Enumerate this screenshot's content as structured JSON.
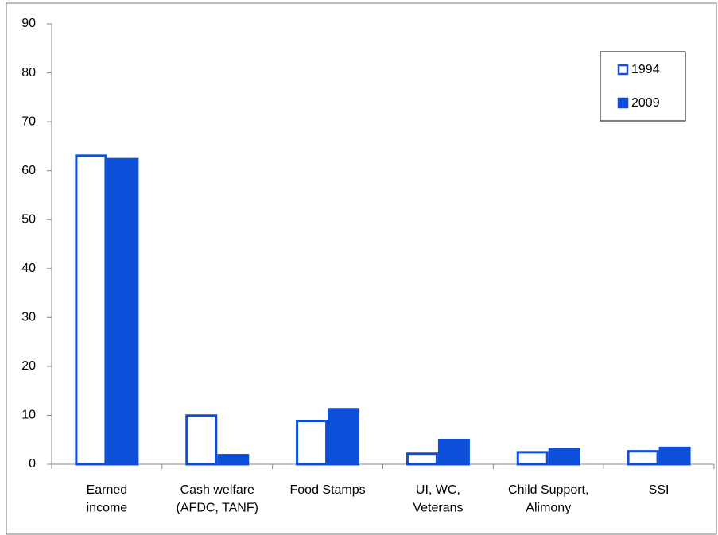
{
  "chart_data": {
    "type": "bar",
    "categories": [
      "Earned\nincome",
      "Cash welfare\n(AFDC, TANF)",
      "Food Stamps",
      "UI, WC,\nVeterans",
      "Child Support,\nAlimony",
      "SSI"
    ],
    "series": [
      {
        "name": "1994",
        "color": "#0d4fd8",
        "hollow": true,
        "values": [
          63.3,
          10.2,
          9.1,
          2.4,
          2.7,
          2.9
        ]
      },
      {
        "name": "2009",
        "color": "#0d4fd8",
        "hollow": false,
        "values": [
          62.6,
          2.1,
          11.5,
          5.2,
          3.3,
          3.6
        ]
      }
    ],
    "ylim": [
      0,
      90
    ],
    "yticks": [
      0,
      10,
      20,
      30,
      40,
      50,
      60,
      70,
      80,
      90
    ],
    "grid": false,
    "legend": "top-right"
  }
}
